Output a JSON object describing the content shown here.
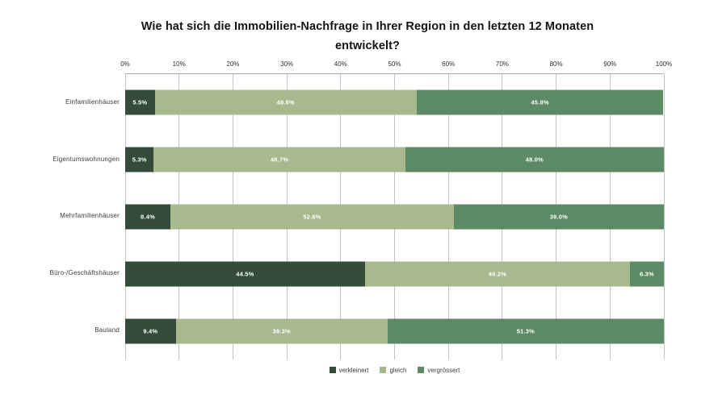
{
  "chart_data": {
    "type": "bar",
    "variant": "horizontal-stacked",
    "title": "Wie hat sich die Immobilien-Nachfrage in Ihrer Region in den letzten 12 Monaten entwickelt?",
    "categories": [
      "Einfamilienhäuser",
      "Eigentumswohnungen",
      "Mehrfamilienhäuser",
      "Büro-/Geschäftshäuser",
      "Bauland"
    ],
    "series": [
      {
        "name": "verkleinert",
        "color": "#344b3a",
        "values": [
          5.5,
          5.3,
          8.4,
          44.5,
          9.4
        ]
      },
      {
        "name": "gleich",
        "color": "#a9b98e",
        "values": [
          48.6,
          46.7,
          52.6,
          49.2,
          39.3
        ]
      },
      {
        "name": "vergrössert",
        "color": "#5b8a64",
        "values": [
          45.8,
          48.0,
          39.0,
          6.3,
          51.3
        ]
      }
    ],
    "x_ticks": [
      "0%",
      "10%",
      "20%",
      "30%",
      "40%",
      "50%",
      "60%",
      "70%",
      "80%",
      "90%",
      "100%"
    ],
    "xlim": [
      0,
      100
    ],
    "grid": true,
    "axis_colors": {
      "gridline": "#c4c4c4",
      "axis_line": "#a6a6a6",
      "tick_text": "#2e2e2e"
    },
    "value_label_style": "white bold, inside segment, one decimal percent",
    "legend_position": "bottom-center"
  }
}
